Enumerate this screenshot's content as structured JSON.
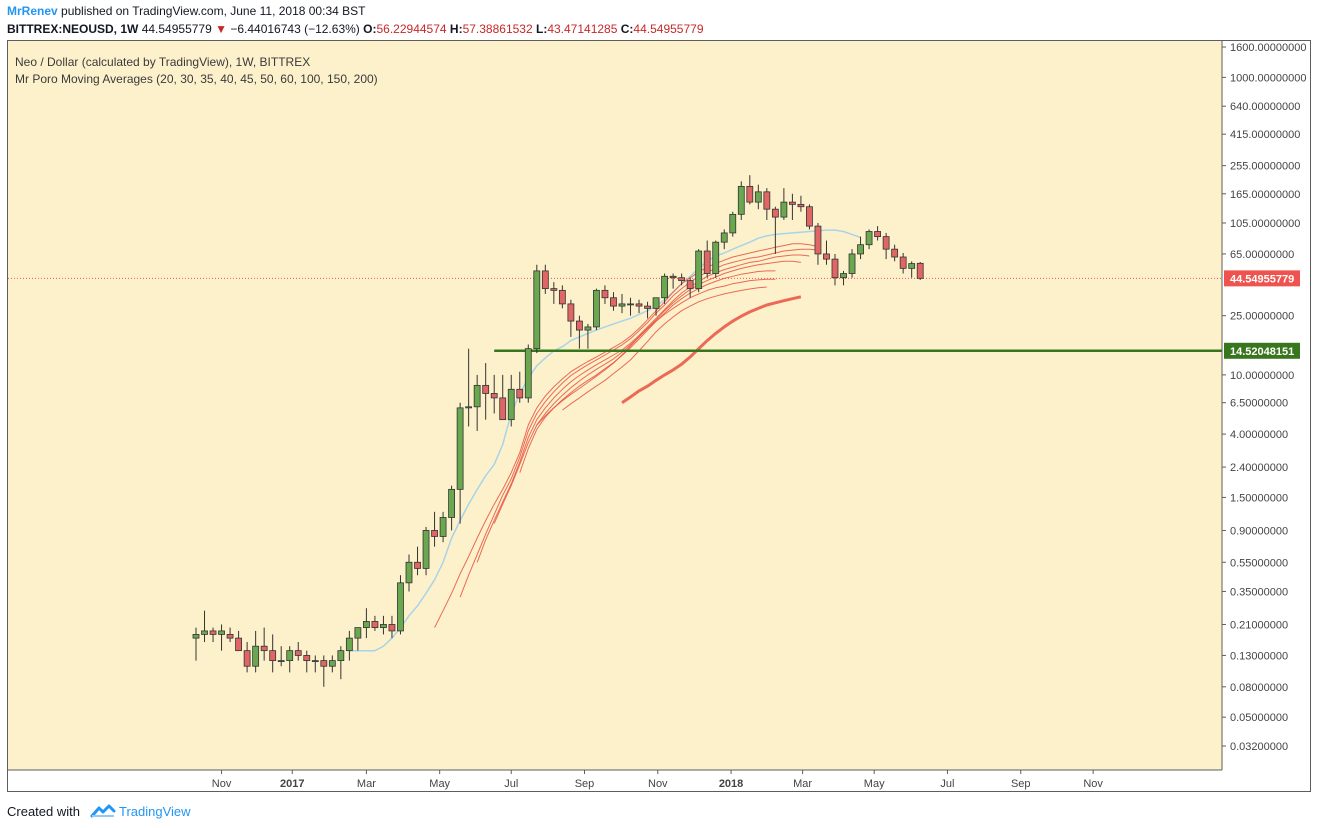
{
  "header": {
    "author": "MrRenev",
    "published_text": "published on TradingView.com, June 11, 2018 00:34 BST",
    "symbol": "BITTREX:NEOUSD, 1W",
    "last_price": "44.54955779",
    "change": "−6.44016743 (−12.63%)",
    "o_label": "O:",
    "o_value": "56.22944574",
    "h_label": "H:",
    "h_value": "57.38861532",
    "l_label": "L:",
    "l_value": "43.47141285",
    "c_label": "C:",
    "c_value": "44.54955779"
  },
  "legend": {
    "title": "Neo / Dollar (calculated by TradingView), 1W, BITTREX",
    "indicator": "Mr Poro Moving Averages (20, 30, 35, 40, 45, 50, 60, 100, 150, 200)"
  },
  "footer": {
    "created_with": "Created with",
    "brand": "TradingView"
  },
  "colors": {
    "background": "#fdf1cc",
    "up_candle": "#6aa84f",
    "down_candle": "#e06666",
    "ma_fast": "#a8d4e8",
    "ma_slow": "#e8513f",
    "support_line": "#38761d",
    "price_label": "#ef5350"
  },
  "chart_data": {
    "type": "candlestick",
    "scale": "log",
    "ylim": [
      0.025,
      1700
    ],
    "y_ticks": [
      "1600.00000000",
      "1000.00000000",
      "640.00000000",
      "415.00000000",
      "255.00000000",
      "165.00000000",
      "105.00000000",
      "65.00000000",
      "25.00000000",
      "10.00000000",
      "6.50000000",
      "4.00000000",
      "2.40000000",
      "1.50000000",
      "0.90000000",
      "0.55000000",
      "0.35000000",
      "0.21000000",
      "0.13000000",
      "0.08000000",
      "0.05000000",
      "0.03200000"
    ],
    "y_tick_values": [
      1600,
      1000,
      640,
      415,
      255,
      165,
      105,
      65,
      25,
      10,
      6.5,
      4,
      2.4,
      1.5,
      0.9,
      0.55,
      0.35,
      0.21,
      0.13,
      0.08,
      0.05,
      0.032
    ],
    "x_ticks": [
      "Nov",
      "2017",
      "Mar",
      "May",
      "Jul",
      "Sep",
      "Nov",
      "2018",
      "Mar",
      "May",
      "Jul",
      "Sep",
      "Nov"
    ],
    "x_tick_bold": [
      false,
      true,
      false,
      false,
      false,
      false,
      false,
      true,
      false,
      false,
      false,
      false,
      false
    ],
    "x_tick_weeks": [
      3,
      11.3,
      20,
      28.6,
      37,
      45.6,
      54.2,
      62.8,
      71.2,
      79.6,
      88.2,
      96.8,
      105.3
    ],
    "last_price_label": "44.54955779",
    "last_price": 44.54955779,
    "support_level": 14.52048151,
    "support_label": "14.52048151",
    "support_start_week": 35,
    "candles": [
      [
        0.17,
        0.2,
        0.12,
        0.18
      ],
      [
        0.18,
        0.26,
        0.16,
        0.19
      ],
      [
        0.19,
        0.2,
        0.16,
        0.18
      ],
      [
        0.18,
        0.21,
        0.14,
        0.19
      ],
      [
        0.18,
        0.2,
        0.16,
        0.17
      ],
      [
        0.17,
        0.19,
        0.14,
        0.14
      ],
      [
        0.14,
        0.16,
        0.1,
        0.11
      ],
      [
        0.11,
        0.19,
        0.1,
        0.15
      ],
      [
        0.15,
        0.2,
        0.12,
        0.14
      ],
      [
        0.14,
        0.18,
        0.1,
        0.12
      ],
      [
        0.12,
        0.15,
        0.11,
        0.12
      ],
      [
        0.12,
        0.15,
        0.1,
        0.14
      ],
      [
        0.14,
        0.16,
        0.12,
        0.13
      ],
      [
        0.13,
        0.14,
        0.1,
        0.12
      ],
      [
        0.12,
        0.13,
        0.1,
        0.12
      ],
      [
        0.12,
        0.13,
        0.08,
        0.11
      ],
      [
        0.11,
        0.13,
        0.1,
        0.12
      ],
      [
        0.12,
        0.15,
        0.09,
        0.14
      ],
      [
        0.14,
        0.19,
        0.12,
        0.17
      ],
      [
        0.17,
        0.2,
        0.14,
        0.2
      ],
      [
        0.2,
        0.27,
        0.17,
        0.22
      ],
      [
        0.22,
        0.24,
        0.19,
        0.2
      ],
      [
        0.2,
        0.24,
        0.18,
        0.21
      ],
      [
        0.21,
        0.24,
        0.17,
        0.19
      ],
      [
        0.19,
        0.45,
        0.18,
        0.4
      ],
      [
        0.4,
        0.62,
        0.35,
        0.55
      ],
      [
        0.55,
        0.7,
        0.45,
        0.5
      ],
      [
        0.5,
        0.95,
        0.45,
        0.9
      ],
      [
        0.9,
        1.2,
        0.7,
        0.82
      ],
      [
        0.82,
        1.2,
        0.75,
        1.1
      ],
      [
        1.1,
        1.8,
        0.9,
        1.7
      ],
      [
        1.7,
        6.5,
        1.0,
        6.0
      ],
      [
        6.0,
        15,
        4.5,
        6.1
      ],
      [
        6.1,
        10,
        4.2,
        8.5
      ],
      [
        8.5,
        12,
        5.0,
        7.5
      ],
      [
        7.5,
        10,
        5.5,
        7.0
      ],
      [
        7.0,
        10,
        5.0,
        5.0
      ],
      [
        5.0,
        10,
        4.5,
        8.0
      ],
      [
        8.0,
        10.5,
        6.5,
        7.0
      ],
      [
        7.0,
        16,
        6.5,
        15.0
      ],
      [
        15.0,
        55,
        14.0,
        50.0
      ],
      [
        50.0,
        55,
        35,
        38.0
      ],
      [
        38.0,
        42,
        30,
        37.0
      ],
      [
        37.0,
        40,
        28,
        30.0
      ],
      [
        30.0,
        32,
        18,
        23.0
      ],
      [
        23.0,
        25,
        15,
        20.0
      ],
      [
        20.0,
        22,
        15,
        21.0
      ],
      [
        21.0,
        38,
        20,
        37.0
      ],
      [
        37.0,
        40,
        30,
        33.0
      ],
      [
        33.0,
        36,
        27,
        29.0
      ],
      [
        29.0,
        35,
        26,
        30.0
      ],
      [
        30.0,
        33,
        25,
        30.0
      ],
      [
        30.0,
        32,
        26,
        29.0
      ],
      [
        29.0,
        31,
        24,
        28.0
      ],
      [
        28.0,
        33,
        25,
        33.0
      ],
      [
        33.0,
        48,
        30,
        46.0
      ],
      [
        46.0,
        48,
        38,
        45.0
      ],
      [
        45.0,
        48,
        40,
        43.0
      ],
      [
        43.0,
        45,
        33,
        38.0
      ],
      [
        38.0,
        70,
        36,
        68.0
      ],
      [
        68.0,
        80,
        45,
        48.0
      ],
      [
        48.0,
        80,
        45,
        78.0
      ],
      [
        78.0,
        95,
        70,
        90.0
      ],
      [
        90.0,
        125,
        85,
        120.0
      ],
      [
        120.0,
        200,
        110,
        185.0
      ],
      [
        185.0,
        220,
        140,
        145.0
      ],
      [
        145.0,
        190,
        130,
        170.0
      ],
      [
        170.0,
        180,
        110,
        130.0
      ],
      [
        130.0,
        135,
        65,
        115.0
      ],
      [
        115.0,
        180,
        110,
        145.0
      ],
      [
        145.0,
        165,
        110,
        140.0
      ],
      [
        140.0,
        160,
        125,
        135.0
      ],
      [
        135.0,
        140,
        95,
        100.0
      ],
      [
        100.0,
        105,
        55,
        65.0
      ],
      [
        65.0,
        80,
        55,
        60.0
      ],
      [
        60.0,
        65,
        40,
        45.0
      ],
      [
        45.0,
        50,
        40,
        48.0
      ],
      [
        48.0,
        70,
        45,
        65.0
      ],
      [
        65.0,
        85,
        60,
        75.0
      ],
      [
        75.0,
        95,
        70,
        92.0
      ],
      [
        92.0,
        100,
        80,
        85.0
      ],
      [
        85.0,
        90,
        60,
        70.0
      ],
      [
        70.0,
        75,
        58,
        62.0
      ],
      [
        62.0,
        66,
        48,
        52.0
      ],
      [
        52.0,
        58,
        45,
        56.0
      ],
      [
        56.22944574,
        57.38861532,
        43.47141285,
        44.54955779
      ]
    ],
    "ma_series": [
      {
        "start": 18,
        "values": [
          0.14,
          0.14,
          0.14,
          0.14,
          0.15,
          0.17,
          0.2,
          0.24,
          0.28,
          0.34,
          0.42,
          0.55,
          0.8,
          1.05,
          1.35,
          1.7,
          2.1,
          2.5,
          3.4,
          5.5,
          7.5,
          9.5,
          11.5,
          13,
          14.5,
          15.5,
          17,
          18,
          19,
          20,
          21,
          22,
          23,
          24,
          25.5,
          27,
          29,
          32,
          36,
          41,
          46,
          52,
          58,
          63,
          66,
          70,
          74,
          78,
          83,
          86,
          88,
          89,
          90,
          91,
          92,
          93,
          94,
          94,
          92,
          88,
          84
        ]
      },
      {
        "start": 28,
        "values": [
          0.2,
          0.26,
          0.34,
          0.46,
          0.6,
          0.8,
          1.05,
          1.35,
          1.7,
          2.2,
          3.0,
          4.6,
          6.0,
          7.2,
          8.3,
          9.4,
          10.5,
          11.4,
          12.3,
          13.2,
          14.2,
          15.3,
          16.5,
          18.2,
          20.5,
          23.5,
          27,
          31,
          36,
          41,
          45,
          49,
          53,
          56,
          59,
          62,
          64,
          66,
          68,
          70,
          72,
          74,
          76,
          76,
          75,
          73
        ]
      },
      {
        "start": 31,
        "values": [
          0.32,
          0.45,
          0.62,
          0.85,
          1.15,
          1.55,
          2.0,
          2.8,
          4.2,
          5.5,
          6.6,
          7.7,
          8.8,
          9.9,
          10.8,
          11.7,
          12.6,
          13.6,
          14.7,
          15.9,
          17.5,
          19.8,
          22.5,
          26,
          29.5,
          34,
          38,
          42,
          46,
          49,
          52,
          55,
          57,
          59,
          61,
          62,
          64,
          66,
          68,
          69,
          70,
          70,
          69
        ]
      },
      {
        "start": 33,
        "values": [
          0.55,
          0.78,
          1.05,
          1.4,
          1.85,
          2.6,
          3.8,
          5.0,
          6.0,
          7.0,
          8.0,
          9.0,
          9.9,
          10.8,
          11.7,
          12.6,
          13.6,
          14.7,
          16.3,
          18.4,
          21,
          24,
          27.5,
          31.5,
          35.5,
          39,
          42.5,
          46,
          48.5,
          51,
          53,
          55,
          57,
          58,
          60,
          62,
          63,
          64,
          64,
          63
        ]
      },
      {
        "start": 35,
        "values": [
          1.0,
          1.35,
          1.8,
          2.5,
          3.5,
          4.6,
          5.5,
          6.4,
          7.3,
          8.2,
          9.1,
          10,
          10.9,
          11.8,
          12.8,
          14.2,
          15.9,
          18,
          20.5,
          23.5,
          27,
          30.5,
          34,
          37.5,
          40.5,
          43,
          45.5,
          48,
          50,
          52,
          53.5,
          55,
          56,
          57,
          58,
          58,
          57
        ]
      },
      {
        "start": 38,
        "values": [
          2.2,
          3.2,
          4.3,
          5.2,
          6.0,
          6.8,
          7.6,
          8.4,
          9.2,
          10,
          11,
          12.1,
          13.5,
          15.2,
          17.4,
          20,
          23,
          26,
          29.5,
          32.5,
          35.5,
          38,
          40.5,
          42.5,
          44.5,
          46,
          47.5,
          48.5,
          49.5,
          50,
          50
        ]
      },
      {
        "start": 40,
        "values": [
          4.6,
          5.3,
          6.0,
          6.7,
          7.4,
          8.1,
          8.9,
          9.8,
          10.8,
          12,
          13.6,
          15.6,
          18,
          20.6,
          23,
          25.5,
          28,
          30.5,
          33,
          35,
          37,
          38.5,
          39.5,
          41,
          42,
          43,
          43.5,
          44,
          44
        ]
      },
      {
        "start": 43,
        "values": [
          5.8,
          6.4,
          7.0,
          7.7,
          8.4,
          9.2,
          10.2,
          11.3,
          12.6,
          14.5,
          16.8,
          19.5,
          22,
          24.5,
          27,
          29,
          31,
          32.5,
          33.8,
          35,
          36,
          37,
          37.8,
          38.5,
          39
        ]
      },
      {
        "start": 50,
        "values": [
          6.5,
          7.1,
          7.8,
          8.4,
          9.2,
          10,
          10.8,
          11.8,
          13.2,
          15,
          17,
          19,
          21,
          23,
          24.8,
          26.5,
          28,
          29.5,
          30.5,
          31.5,
          32.5,
          33.5
        ]
      }
    ]
  }
}
